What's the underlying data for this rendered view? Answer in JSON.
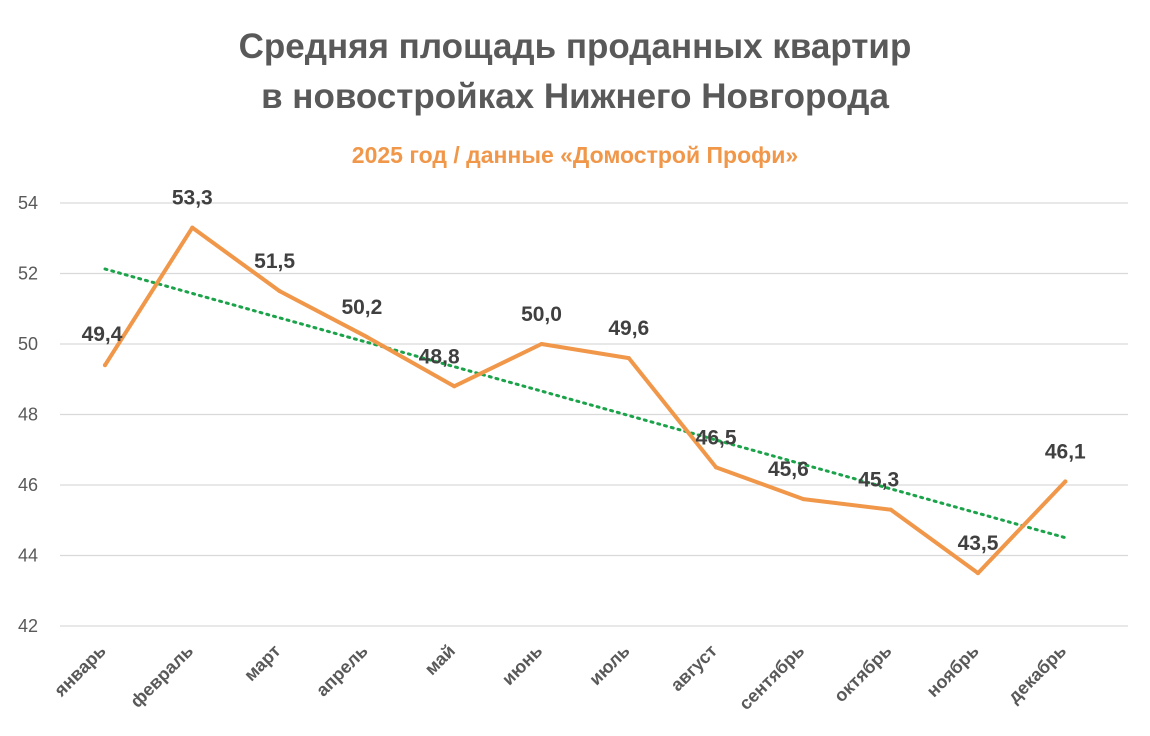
{
  "chart_data": {
    "type": "line",
    "title_line1": "Средняя площадь проданных квартир",
    "title_line2": "в новостройках Нижнего Новгорода",
    "subtitle": "2025 год / данные «Домострой Профи»",
    "categories": [
      "январь",
      "февраль",
      "март",
      "апрель",
      "май",
      "июнь",
      "июль",
      "август",
      "сентябрь",
      "октябрь",
      "ноябрь",
      "декабрь"
    ],
    "values": [
      49.4,
      53.3,
      51.5,
      50.2,
      48.8,
      50.0,
      49.6,
      46.5,
      45.6,
      45.3,
      43.5,
      46.1
    ],
    "data_labels": [
      "49,4",
      "53,3",
      "51,5",
      "50,2",
      "48,8",
      "50,0",
      "49,6",
      "46,5",
      "45,6",
      "45,3",
      "43,5",
      "46,1"
    ],
    "ylim": [
      42,
      54
    ],
    "yticks": [
      42,
      44,
      46,
      48,
      50,
      52,
      54
    ],
    "grid": true,
    "trendline": {
      "type": "linear",
      "style": "dotted"
    },
    "colors": {
      "series": "#F0974A",
      "trend": "#1BA34A",
      "subtitle": "#F0974A",
      "grid": "#D9D9D9"
    }
  }
}
